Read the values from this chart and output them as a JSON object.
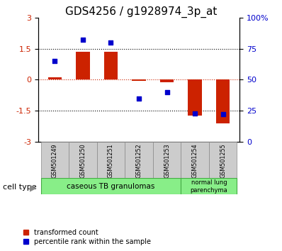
{
  "title": "GDS4256 / g1928974_3p_at",
  "samples": [
    "GSM501249",
    "GSM501250",
    "GSM501251",
    "GSM501252",
    "GSM501253",
    "GSM501254",
    "GSM501255"
  ],
  "transformed_count": [
    0.12,
    1.35,
    1.35,
    -0.05,
    -0.12,
    -1.72,
    -2.1
  ],
  "percentile_rank": [
    65,
    82,
    80,
    35,
    40,
    23,
    22
  ],
  "ylim_left": [
    -3,
    3
  ],
  "ylim_right": [
    0,
    100
  ],
  "left_yticks": [
    -3,
    -1.5,
    0,
    1.5,
    3
  ],
  "right_yticks": [
    0,
    25,
    50,
    75,
    100
  ],
  "hlines": [
    1.5,
    -1.5
  ],
  "bar_color": "#cc2200",
  "dot_color": "#0000cc",
  "bar_width": 0.5,
  "sample_box_color": "#cccccc",
  "cell_type_bg": "#88ee88",
  "title_fontsize": 11,
  "cell_type_label": "cell type",
  "legend_red": "transformed count",
  "legend_blue": "percentile rank within the sample"
}
